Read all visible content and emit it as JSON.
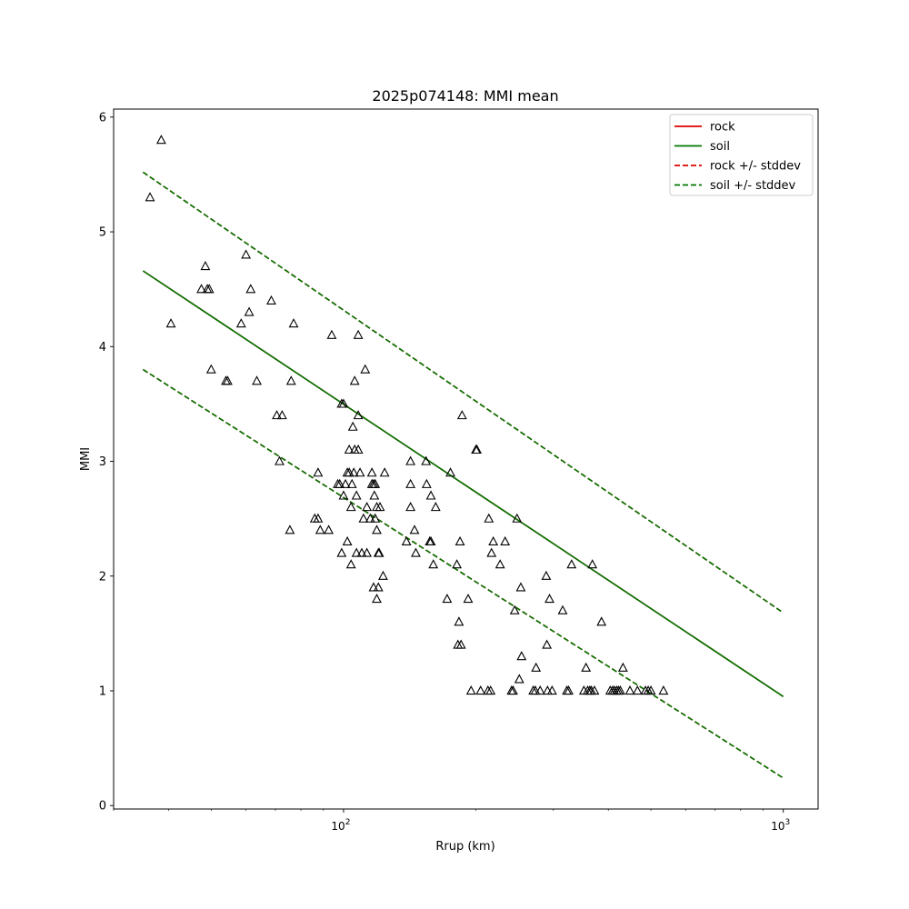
{
  "chart_data": {
    "type": "scatter",
    "title": "2025p074148: MMI mean",
    "xlabel": "Rrup (km)",
    "ylabel": "MMI",
    "xscale": "log",
    "xlim": [
      30,
      1200
    ],
    "ylim": [
      -0.03,
      6.07
    ],
    "xticks": [
      {
        "value": 100,
        "base": "10",
        "exp": "2"
      },
      {
        "value": 1000,
        "base": "10",
        "exp": "3"
      }
    ],
    "yticks": [
      0,
      1,
      2,
      3,
      4,
      5,
      6
    ],
    "legend": {
      "placement": "top-right",
      "entries": [
        {
          "label": "rock",
          "color": "#dd0000",
          "style": "solid"
        },
        {
          "label": "soil",
          "color": "#007700",
          "style": "solid"
        },
        {
          "label": "rock +/- stddev",
          "color": "#dd0000",
          "style": "dashed"
        },
        {
          "label": "soil +/- stddev",
          "color": "#007700",
          "style": "dashed"
        }
      ]
    },
    "series": [
      {
        "name": "rock",
        "color": "#dd0000",
        "style": "solid",
        "x": [
          35,
          1000
        ],
        "y": [
          4.66,
          0.95
        ]
      },
      {
        "name": "soil",
        "color": "#007700",
        "style": "solid",
        "x": [
          35,
          1000
        ],
        "y": [
          4.66,
          0.95
        ]
      },
      {
        "name": "rock +/- stddev",
        "color": "#dd0000",
        "style": "dashed",
        "x": [
          35,
          1000
        ],
        "y": [
          5.52,
          1.68
        ]
      },
      {
        "name": "rock +/- stddev",
        "color": "#dd0000",
        "style": "dashed",
        "x": [
          35,
          1000
        ],
        "y": [
          3.8,
          0.24
        ]
      },
      {
        "name": "soil +/- stddev",
        "color": "#007700",
        "style": "dashed",
        "x": [
          35,
          1000
        ],
        "y": [
          5.52,
          1.68
        ]
      },
      {
        "name": "soil +/- stddev",
        "color": "#007700",
        "style": "dashed",
        "x": [
          35,
          1000
        ],
        "y": [
          3.8,
          0.24
        ]
      }
    ],
    "observations": {
      "marker": "triangle-open",
      "color": "#000000",
      "points": [
        [
          36.3,
          5.3
        ],
        [
          38.5,
          5.8
        ],
        [
          40.5,
          4.2
        ],
        [
          47.5,
          4.5
        ],
        [
          48.5,
          4.7
        ],
        [
          49,
          4.5
        ],
        [
          49.5,
          4.5
        ],
        [
          50,
          3.8
        ],
        [
          54,
          3.7
        ],
        [
          54.5,
          3.7
        ],
        [
          58.5,
          4.2
        ],
        [
          60,
          4.8
        ],
        [
          61.5,
          4.5
        ],
        [
          61,
          4.3
        ],
        [
          63.5,
          3.7
        ],
        [
          68.5,
          4.4
        ],
        [
          70.5,
          3.4
        ],
        [
          72.5,
          3.4
        ],
        [
          71.5,
          3.0
        ],
        [
          76,
          3.7
        ],
        [
          77,
          4.2
        ],
        [
          75.5,
          2.4
        ],
        [
          86,
          2.5
        ],
        [
          87.5,
          2.5
        ],
        [
          87.5,
          2.9
        ],
        [
          88.5,
          2.4
        ],
        [
          92.5,
          2.4
        ],
        [
          94,
          4.1
        ],
        [
          97,
          2.8
        ],
        [
          98,
          2.8
        ],
        [
          99,
          2.2
        ],
        [
          99,
          3.5
        ],
        [
          100,
          3.5
        ],
        [
          100,
          2.7
        ],
        [
          101,
          2.8
        ],
        [
          102,
          2.3
        ],
        [
          102,
          2.9
        ],
        [
          103,
          3.1
        ],
        [
          103,
          2.9
        ],
        [
          104,
          2.6
        ],
        [
          104,
          2.1
        ],
        [
          104.5,
          2.8
        ],
        [
          105,
          3.3
        ],
        [
          105.5,
          2.9
        ],
        [
          106,
          3.1
        ],
        [
          106,
          3.7
        ],
        [
          107,
          2.7
        ],
        [
          107,
          2.2
        ],
        [
          108,
          3.1
        ],
        [
          108,
          4.1
        ],
        [
          108,
          3.4
        ],
        [
          109,
          2.9
        ],
        [
          110,
          2.2
        ],
        [
          111,
          2.5
        ],
        [
          112,
          3.8
        ],
        [
          113,
          2.2
        ],
        [
          113,
          2.6
        ],
        [
          115,
          2.5
        ],
        [
          116,
          2.9
        ],
        [
          116,
          2.8
        ],
        [
          117,
          2.8
        ],
        [
          117,
          1.9
        ],
        [
          117.5,
          2.7
        ],
        [
          118,
          2.8
        ],
        [
          118,
          2.5
        ],
        [
          119,
          1.8
        ],
        [
          119,
          2.6
        ],
        [
          119,
          2.4
        ],
        [
          120,
          1.9
        ],
        [
          120,
          2.2
        ],
        [
          120.5,
          2.2
        ],
        [
          121,
          2.6
        ],
        [
          123,
          2.0
        ],
        [
          124,
          2.9
        ],
        [
          139,
          2.3
        ],
        [
          142,
          3.0
        ],
        [
          142,
          2.8
        ],
        [
          142,
          2.6
        ],
        [
          145,
          2.4
        ],
        [
          146,
          2.2
        ],
        [
          154,
          3.0
        ],
        [
          154.5,
          2.8
        ],
        [
          157,
          2.3
        ],
        [
          158,
          2.7
        ],
        [
          158,
          2.3
        ],
        [
          160,
          2.1
        ],
        [
          162,
          2.6
        ],
        [
          172,
          1.8
        ],
        [
          175,
          2.9
        ],
        [
          181,
          2.1
        ],
        [
          182,
          1.4
        ],
        [
          183,
          1.6
        ],
        [
          184,
          2.3
        ],
        [
          185,
          1.4
        ],
        [
          186,
          3.4
        ],
        [
          192,
          1.8
        ],
        [
          195,
          1.0
        ],
        [
          200,
          3.1
        ],
        [
          201,
          3.1
        ],
        [
          205,
          1.0
        ],
        [
          213,
          1.0
        ],
        [
          214,
          2.5
        ],
        [
          216,
          1.0
        ],
        [
          217,
          2.2
        ],
        [
          219,
          2.3
        ],
        [
          227,
          2.1
        ],
        [
          233,
          2.3
        ],
        [
          241,
          1.0
        ],
        [
          243,
          1.0
        ],
        [
          245,
          1.7
        ],
        [
          248,
          2.5
        ],
        [
          251,
          1.1
        ],
        [
          253,
          1.9
        ],
        [
          254,
          1.3
        ],
        [
          270,
          1.0
        ],
        [
          273,
          1.0
        ],
        [
          274,
          1.2
        ],
        [
          280,
          1.0
        ],
        [
          289,
          2.0
        ],
        [
          290,
          1.4
        ],
        [
          291,
          1.0
        ],
        [
          294,
          1.8
        ],
        [
          298,
          1.0
        ],
        [
          315,
          1.7
        ],
        [
          322,
          1.0
        ],
        [
          325,
          1.0
        ],
        [
          330,
          2.1
        ],
        [
          352,
          1.0
        ],
        [
          356,
          1.2
        ],
        [
          359,
          1.0
        ],
        [
          363,
          1.0
        ],
        [
          366,
          1.0
        ],
        [
          368,
          2.1
        ],
        [
          372,
          1.0
        ],
        [
          386,
          1.6
        ],
        [
          404,
          1.0
        ],
        [
          409,
          1.0
        ],
        [
          413,
          1.0
        ],
        [
          418,
          1.0
        ],
        [
          422,
          1.0
        ],
        [
          426,
          1.0
        ],
        [
          432,
          1.2
        ],
        [
          448,
          1.0
        ],
        [
          466,
          1.0
        ],
        [
          486,
          1.0
        ],
        [
          493,
          1.0
        ],
        [
          500,
          1.0
        ],
        [
          534,
          1.0
        ]
      ]
    }
  }
}
